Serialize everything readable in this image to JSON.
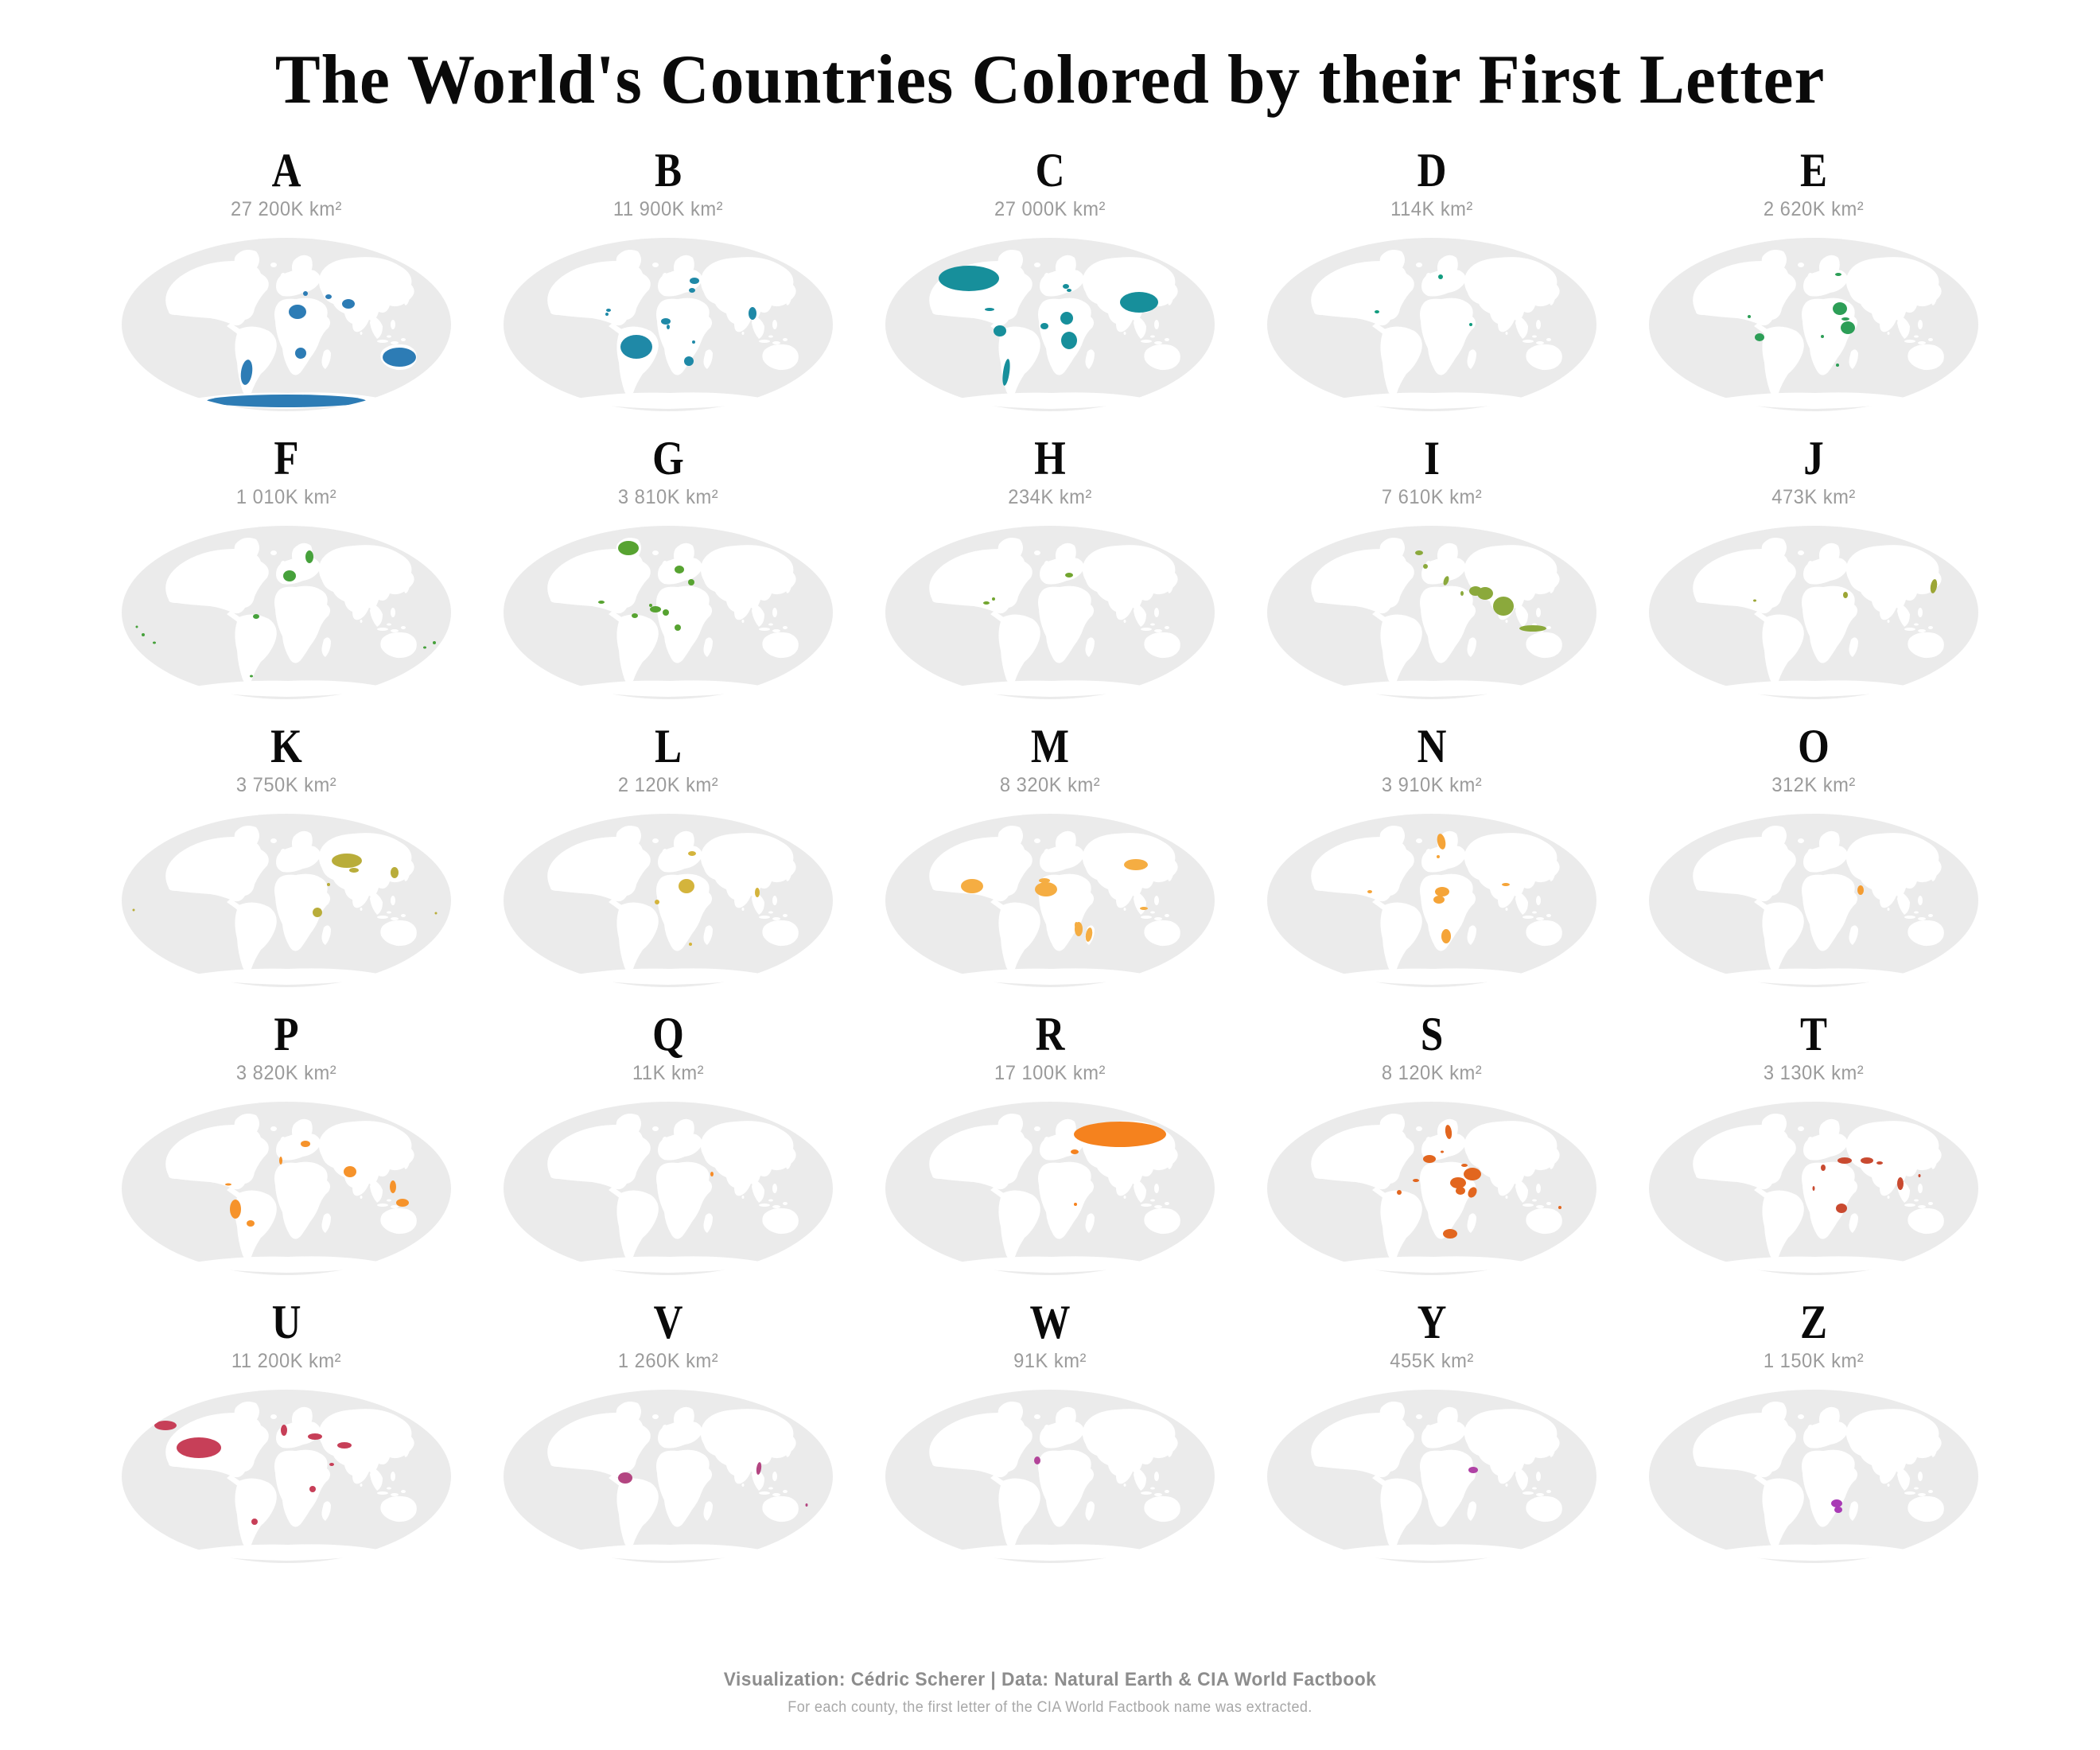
{
  "title": "The World's Countries Colored by their First Letter",
  "footer": {
    "credit": "Visualization: Cédric Scherer | Data: Natural Earth & CIA World Factbook",
    "note": "For each county, the first letter of the CIA World Factbook name was extracted."
  },
  "map_style": {
    "ocean": "#ebebeb",
    "land": "#ffffff"
  },
  "chart_data": {
    "type": "heatmap",
    "subtype": "small-multiple-world-choropleths",
    "unit": "K km²",
    "legend_position": "none",
    "grid": {
      "columns": 5,
      "rows": 5
    },
    "letters": [
      {
        "letter": "A",
        "area_label": "27 200K km²",
        "area_k_km2": 27200,
        "color": "#2d7cb5",
        "spots": [
          [
            224,
            96,
            11,
            9
          ],
          [
            228,
            148,
            7,
            7
          ],
          [
            288,
            86,
            8,
            6
          ],
          [
            160,
            172,
            7,
            16,
            8
          ],
          [
            352,
            153,
            21,
            12
          ],
          [
            210,
            208,
            100,
            8
          ],
          [
            234,
            73,
            3,
            3
          ],
          [
            263,
            77,
            4,
            3
          ]
        ]
      },
      {
        "letter": "B",
        "area_label": "11 900K km²",
        "area_k_km2": 11900,
        "color": "#1f89a7",
        "spots": [
          [
            170,
            140,
            20,
            15
          ],
          [
            243,
            57,
            6,
            4
          ],
          [
            240,
            69,
            4,
            3
          ],
          [
            207,
            108,
            6,
            4
          ],
          [
            210,
            115,
            2,
            3
          ],
          [
            236,
            158,
            6,
            6
          ],
          [
            316,
            98,
            5,
            8
          ],
          [
            135,
            94,
            3,
            2
          ],
          [
            133,
            99,
            2,
            2
          ],
          [
            242,
            134,
            2,
            2
          ]
        ]
      },
      {
        "letter": "C",
        "area_label": "27 000K km²",
        "area_k_km2": 27000,
        "color": "#178f9b",
        "spots": [
          [
            108,
            54,
            38,
            16
          ],
          [
            322,
            84,
            24,
            13
          ],
          [
            147,
            120,
            8,
            7
          ],
          [
            155,
            172,
            4,
            17,
            8
          ],
          [
            231,
            104,
            8,
            8
          ],
          [
            234,
            132,
            10,
            11
          ],
          [
            203,
            114,
            5,
            4
          ],
          [
            134,
            93,
            6,
            2
          ],
          [
            230,
            64,
            4,
            3
          ],
          [
            234,
            69,
            3,
            2
          ]
        ]
      },
      {
        "letter": "D",
        "area_label": "114K km²",
        "area_k_km2": 114,
        "color": "#129c7f",
        "spots": [
          [
            221,
            52,
            3,
            3
          ],
          [
            141,
            96,
            3,
            2
          ],
          [
            259,
            112,
            2,
            2
          ]
        ]
      },
      {
        "letter": "E",
        "area_label": "2 620K km²",
        "area_k_km2": 2620,
        "color": "#2d9e57",
        "spots": [
          [
            243,
            92,
            9,
            8
          ],
          [
            253,
            116,
            9,
            8
          ],
          [
            142,
            128,
            6,
            5
          ],
          [
            250,
            105,
            5,
            2
          ],
          [
            241,
            49,
            4,
            2
          ],
          [
            129,
            102,
            2,
            2
          ],
          [
            221,
            127,
            2,
            2
          ],
          [
            240,
            163,
            2,
            2
          ]
        ]
      },
      {
        "letter": "F",
        "area_label": "1 010K km²",
        "area_k_km2": 1010,
        "color": "#46a13b",
        "spots": [
          [
            214,
            66,
            8,
            7
          ],
          [
            239,
            42,
            5,
            8
          ],
          [
            172,
            117,
            4,
            3
          ],
          [
            30,
            140,
            2,
            2
          ],
          [
            44,
            150,
            2,
            1.5
          ],
          [
            22,
            130,
            1.5,
            1.5
          ],
          [
            396,
            150,
            2,
            2
          ],
          [
            166,
            192,
            2,
            1.5
          ],
          [
            384,
            156,
            2,
            1.5
          ]
        ]
      },
      {
        "letter": "G",
        "area_label": "3 810K km²",
        "area_k_km2": 3810,
        "color": "#57a331",
        "spots": [
          [
            160,
            31,
            13,
            9
          ],
          [
            224,
            58,
            6,
            5
          ],
          [
            239,
            74,
            4,
            4
          ],
          [
            194,
            108,
            7,
            4
          ],
          [
            207,
            112,
            4,
            4
          ],
          [
            222,
            131,
            4,
            4
          ],
          [
            168,
            116,
            4,
            3
          ],
          [
            126,
            99,
            4,
            2
          ],
          [
            188,
            103,
            2,
            2
          ]
        ]
      },
      {
        "letter": "H",
        "area_label": "234K km²",
        "area_k_km2": 234,
        "color": "#72a52f",
        "spots": [
          [
            234,
            65,
            5,
            3
          ],
          [
            130,
            100,
            4,
            2
          ],
          [
            139,
            95,
            2,
            2
          ]
        ]
      },
      {
        "letter": "I",
        "area_label": "7 610K km²",
        "area_k_km2": 7610,
        "color": "#8ba93c",
        "spots": [
          [
            194,
            37,
            5,
            3
          ],
          [
            202,
            54,
            3,
            3
          ],
          [
            228,
            72,
            3,
            6,
            20
          ],
          [
            265,
            85,
            8,
            6
          ],
          [
            277,
            88,
            10,
            8
          ],
          [
            300,
            104,
            13,
            12
          ],
          [
            337,
            132,
            17,
            4
          ],
          [
            248,
            88,
            2,
            3
          ]
        ]
      },
      {
        "letter": "J",
        "area_label": "473K km²",
        "area_k_km2": 473,
        "color": "#9ca636",
        "spots": [
          [
            361,
            79,
            4,
            9,
            10
          ],
          [
            250,
            90,
            3,
            4
          ],
          [
            136,
            97,
            2,
            1.5
          ]
        ]
      },
      {
        "letter": "K",
        "area_label": "3 750K km²",
        "area_k_km2": 3750,
        "color": "#b9ad3a",
        "spots": [
          [
            286,
            62,
            19,
            9
          ],
          [
            295,
            74,
            6,
            3
          ],
          [
            249,
            127,
            6,
            6
          ],
          [
            346,
            77,
            5,
            7
          ],
          [
            263,
            92,
            2,
            2
          ],
          [
            398,
            128,
            1.5,
            1.5
          ],
          [
            18,
            124,
            1.5,
            1.5
          ]
        ]
      },
      {
        "letter": "L",
        "area_label": "2 120K km²",
        "area_k_km2": 2120,
        "color": "#d4b43c",
        "spots": [
          [
            233,
            94,
            10,
            9
          ],
          [
            240,
            53,
            5,
            3
          ],
          [
            322,
            102,
            3,
            6
          ],
          [
            196,
            114,
            3,
            3
          ],
          [
            238,
            167,
            2,
            2
          ]
        ]
      },
      {
        "letter": "M",
        "area_label": "8 320K km²",
        "area_k_km2": 8320,
        "color": "#f5ad42",
        "spots": [
          [
            112,
            94,
            14,
            9
          ],
          [
            318,
            67,
            15,
            7
          ],
          [
            205,
            98,
            14,
            9
          ],
          [
            203,
            87,
            7,
            3
          ],
          [
            259,
            155,
            4,
            9,
            10
          ],
          [
            246,
            148,
            5,
            9
          ],
          [
            328,
            122,
            5,
            2
          ],
          [
            243,
            143,
            2,
            4
          ]
        ]
      },
      {
        "letter": "N",
        "area_label": "3 910K km²",
        "area_k_km2": 3910,
        "color": "#f5a438",
        "spots": [
          [
            222,
            38,
            5,
            10,
            -12
          ],
          [
            218,
            57,
            2,
            2
          ],
          [
            223,
            101,
            9,
            6
          ],
          [
            219,
            111,
            7,
            5
          ],
          [
            228,
            157,
            6,
            9
          ],
          [
            132,
            101,
            3,
            2
          ],
          [
            303,
            92,
            5,
            2
          ],
          [
            390,
            174,
            4,
            8,
            20
          ]
        ]
      },
      {
        "letter": "O",
        "area_label": "312K km²",
        "area_k_km2": 312,
        "color": "#f49c31",
        "spots": [
          [
            269,
            99,
            4,
            6
          ]
        ]
      },
      {
        "letter": "P",
        "area_label": "3 820K km²",
        "area_k_km2": 3820,
        "color": "#f6932b",
        "spots": [
          [
            234,
            56,
            6,
            4
          ],
          [
            203,
            77,
            2,
            5
          ],
          [
            290,
            91,
            8,
            7
          ],
          [
            146,
            138,
            7,
            12
          ],
          [
            165,
            156,
            5,
            4
          ],
          [
            137,
            107,
            4,
            1.5
          ],
          [
            344,
            110,
            4,
            8
          ],
          [
            356,
            130,
            8,
            5
          ]
        ]
      },
      {
        "letter": "Q",
        "area_label": "11K km²",
        "area_k_km2": 11,
        "color": "#f78b26",
        "spots": [
          [
            265,
            94,
            2,
            3
          ]
        ]
      },
      {
        "letter": "R",
        "area_label": "17 100K km²",
        "area_k_km2": 17100,
        "color": "#f5821e",
        "spots": [
          [
            298,
            44,
            58,
            16
          ],
          [
            241,
            66,
            5,
            3
          ],
          [
            242,
            132,
            2,
            2
          ]
        ]
      },
      {
        "letter": "S",
        "area_label": "8 120K km²",
        "area_k_km2": 8120,
        "color": "#e2661f",
        "spots": [
          [
            231,
            41,
            4,
            9,
            -8
          ],
          [
            207,
            75,
            8,
            5
          ],
          [
            261,
            94,
            11,
            8
          ],
          [
            243,
            105,
            10,
            7
          ],
          [
            246,
            115,
            6,
            5
          ],
          [
            261,
            117,
            5,
            7,
            30
          ],
          [
            233,
            169,
            9,
            6
          ],
          [
            169,
            117,
            3,
            3
          ],
          [
            190,
            102,
            4,
            2
          ],
          [
            251,
            83,
            4,
            2
          ],
          [
            223,
            66,
            2,
            1.5
          ],
          [
            371,
            136,
            2,
            2
          ]
        ]
      },
      {
        "letter": "T",
        "area_label": "3 130K km²",
        "area_k_km2": 3130,
        "color": "#c94a30",
        "spots": [
          [
            249,
            77,
            9,
            4
          ],
          [
            277,
            77,
            8,
            4
          ],
          [
            293,
            80,
            4,
            2
          ],
          [
            222,
            86,
            3,
            4
          ],
          [
            245,
            137,
            7,
            6
          ],
          [
            319,
            106,
            4,
            8
          ],
          [
            210,
            112,
            1.5,
            3
          ],
          [
            343,
            96,
            1.5,
            2
          ]
        ]
      },
      {
        "letter": "U",
        "area_label": "11 200K km²",
        "area_k_km2": 11200,
        "color": "#c73f58",
        "spots": [
          [
            100,
            76,
            28,
            13
          ],
          [
            58,
            48,
            14,
            6
          ],
          [
            207,
            54,
            4,
            7
          ],
          [
            246,
            62,
            9,
            4
          ],
          [
            283,
            73,
            9,
            4
          ],
          [
            267,
            97,
            3,
            2
          ],
          [
            243,
            128,
            4,
            4
          ],
          [
            170,
            169,
            4,
            4
          ]
        ]
      },
      {
        "letter": "V",
        "area_label": "1 260K km²",
        "area_k_km2": 1260,
        "color": "#b34581",
        "spots": [
          [
            156,
            114,
            9,
            7
          ],
          [
            324,
            102,
            3,
            8,
            8
          ],
          [
            384,
            148,
            1.5,
            2
          ]
        ]
      },
      {
        "letter": "W",
        "area_label": "91K km²",
        "area_k_km2": 91,
        "color": "#b24499",
        "spots": [
          [
            194,
            92,
            4,
            5
          ]
        ]
      },
      {
        "letter": "Y",
        "area_label": "455K km²",
        "area_k_km2": 455,
        "color": "#b042a5",
        "spots": [
          [
            262,
            104,
            6,
            4
          ]
        ]
      },
      {
        "letter": "Z",
        "area_label": "1 150K km²",
        "area_k_km2": 1150,
        "color": "#a93bb5",
        "spots": [
          [
            239,
            146,
            7,
            5
          ],
          [
            241,
            154,
            5,
            4
          ]
        ]
      }
    ]
  }
}
